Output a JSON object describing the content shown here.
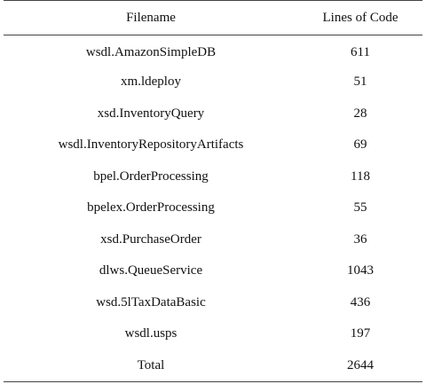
{
  "table": {
    "headers": [
      "Filename",
      "Lines of Code"
    ],
    "rows": [
      [
        "wsdl.AmazonSimpleDB",
        "611"
      ],
      [
        "xm.ldeploy",
        "51"
      ],
      [
        "xsd.InventoryQuery",
        "28"
      ],
      [
        "wsdl.InventoryRepositoryArtifacts",
        "69"
      ],
      [
        "bpel.OrderProcessing",
        "118"
      ],
      [
        "bpelex.OrderProcessing",
        "55"
      ],
      [
        "xsd.PurchaseOrder",
        "36"
      ],
      [
        "dlws.QueueService",
        "1043"
      ],
      [
        "wsd.5lTaxDataBasic",
        "436"
      ],
      [
        "wsdl.usps",
        "197"
      ]
    ],
    "total": [
      "Total",
      "2644"
    ]
  }
}
